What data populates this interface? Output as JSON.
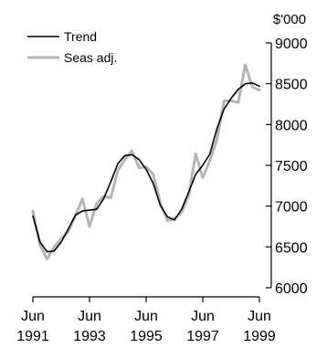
{
  "chart_data": {
    "type": "line",
    "title": "",
    "xlabel": "",
    "ylabel": "$'000",
    "xlim": [
      1991.42,
      1999.42
    ],
    "ylim": [
      6000,
      9000
    ],
    "y_ticks": [
      6000,
      6500,
      7000,
      7500,
      8000,
      8500,
      9000
    ],
    "x_ticks": [
      {
        "x": 1991.42,
        "month": "Jun",
        "year": "1991"
      },
      {
        "x": 1993.42,
        "month": "Jun",
        "year": "1993"
      },
      {
        "x": 1995.42,
        "month": "Jun",
        "year": "1995"
      },
      {
        "x": 1997.42,
        "month": "Jun",
        "year": "1997"
      },
      {
        "x": 1999.42,
        "month": "Jun",
        "year": "1999"
      }
    ],
    "grid": false,
    "legend": "top-left",
    "series": [
      {
        "name": "Trend",
        "color": "#000000",
        "points": [
          [
            1991.42,
            6880
          ],
          [
            1991.67,
            6560
          ],
          [
            1991.92,
            6440
          ],
          [
            1992.17,
            6450
          ],
          [
            1992.42,
            6560
          ],
          [
            1992.67,
            6720
          ],
          [
            1992.92,
            6890
          ],
          [
            1993.17,
            6940
          ],
          [
            1993.42,
            6950
          ],
          [
            1993.67,
            6960
          ],
          [
            1993.92,
            7090
          ],
          [
            1994.17,
            7300
          ],
          [
            1994.42,
            7520
          ],
          [
            1994.67,
            7620
          ],
          [
            1994.92,
            7630
          ],
          [
            1995.17,
            7570
          ],
          [
            1995.42,
            7450
          ],
          [
            1995.67,
            7280
          ],
          [
            1995.92,
            7010
          ],
          [
            1996.17,
            6870
          ],
          [
            1996.42,
            6830
          ],
          [
            1996.67,
            6960
          ],
          [
            1996.92,
            7170
          ],
          [
            1997.17,
            7390
          ],
          [
            1997.42,
            7500
          ],
          [
            1997.67,
            7640
          ],
          [
            1997.92,
            7950
          ],
          [
            1998.17,
            8190
          ],
          [
            1998.42,
            8320
          ],
          [
            1998.67,
            8430
          ],
          [
            1998.92,
            8500
          ],
          [
            1999.17,
            8510
          ],
          [
            1999.42,
            8470
          ]
        ]
      },
      {
        "name": "Seas adj.",
        "color": "#b4b4b4",
        "points": [
          [
            1991.42,
            6940
          ],
          [
            1991.67,
            6520
          ],
          [
            1991.92,
            6350
          ],
          [
            1992.17,
            6500
          ],
          [
            1992.42,
            6600
          ],
          [
            1992.67,
            6690
          ],
          [
            1992.92,
            6880
          ],
          [
            1993.17,
            7090
          ],
          [
            1993.42,
            6750
          ],
          [
            1993.67,
            7030
          ],
          [
            1993.92,
            7120
          ],
          [
            1994.17,
            7100
          ],
          [
            1994.42,
            7440
          ],
          [
            1994.67,
            7570
          ],
          [
            1994.92,
            7680
          ],
          [
            1995.17,
            7470
          ],
          [
            1995.42,
            7480
          ],
          [
            1995.67,
            7390
          ],
          [
            1995.92,
            7040
          ],
          [
            1996.17,
            6820
          ],
          [
            1996.42,
            6850
          ],
          [
            1996.67,
            6920
          ],
          [
            1996.92,
            7130
          ],
          [
            1997.17,
            7640
          ],
          [
            1997.42,
            7350
          ],
          [
            1997.67,
            7560
          ],
          [
            1997.92,
            7820
          ],
          [
            1998.17,
            8290
          ],
          [
            1998.42,
            8290
          ],
          [
            1998.67,
            8270
          ],
          [
            1998.92,
            8730
          ],
          [
            1999.17,
            8460
          ],
          [
            1999.42,
            8420
          ]
        ]
      }
    ]
  }
}
